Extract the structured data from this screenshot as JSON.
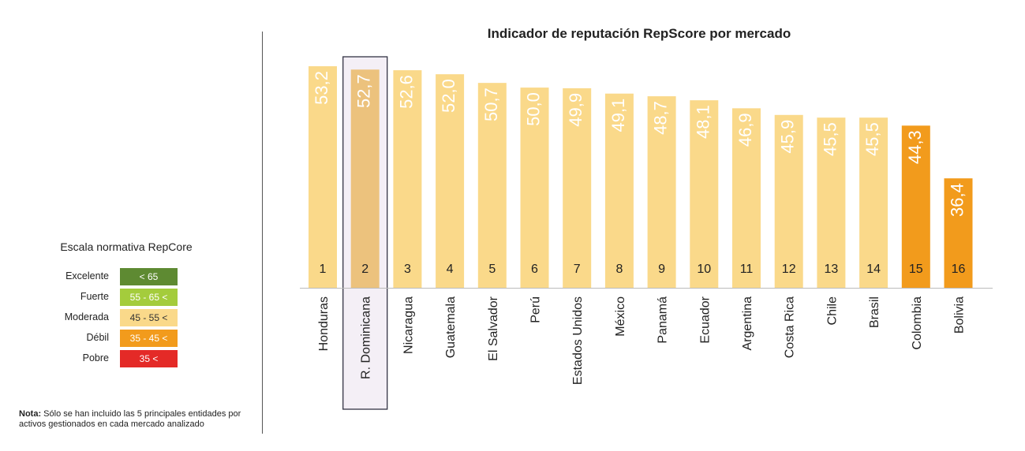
{
  "chart_data": {
    "type": "bar",
    "title": "Indicador de reputación RepScore por mercado",
    "categories": [
      "Honduras",
      "R. Dominicana",
      "Nicaragua",
      "Guatemala",
      "El Salvador",
      "Perú",
      "Estados Unidos",
      "México",
      "Panamá",
      "Ecuador",
      "Argentina",
      "Costa Rica",
      "Chile",
      "Brasil",
      "Colombia",
      "Bolivia"
    ],
    "values": [
      53.2,
      52.7,
      52.6,
      52.0,
      50.7,
      50.0,
      49.9,
      49.1,
      48.7,
      48.1,
      46.9,
      45.9,
      45.5,
      45.5,
      44.3,
      36.4
    ],
    "value_labels": [
      "53,2",
      "52,7",
      "52,6",
      "52,0",
      "50,7",
      "50,0",
      "49,9",
      "49,1",
      "48,7",
      "48,1",
      "46,9",
      "45,9",
      "45,5",
      "45,5",
      "44,3",
      "36,4"
    ],
    "ranks": [
      "1",
      "2",
      "3",
      "4",
      "5",
      "6",
      "7",
      "8",
      "9",
      "10",
      "11",
      "12",
      "13",
      "14",
      "15",
      "16"
    ],
    "bar_colors": [
      "#fad98a",
      "#ecc27d",
      "#fad98a",
      "#fad98a",
      "#fad98a",
      "#fad98a",
      "#fad98a",
      "#fad98a",
      "#fad98a",
      "#fad98a",
      "#fad98a",
      "#fad98a",
      "#fad98a",
      "#fad98a",
      "#f29b1c",
      "#f29b1c"
    ],
    "highlighted": "R. Dominicana",
    "ylim": [
      20,
      54
    ],
    "xlabel": "",
    "ylabel": "",
    "grid": false
  },
  "legend": {
    "title": "Escala normativa RepCore",
    "items": [
      {
        "label": "Excelente",
        "range": "< 65",
        "color": "#5e8a32"
      },
      {
        "label": "Fuerte",
        "range": "55 - 65 <",
        "color": "#a4cc3c"
      },
      {
        "label": "Moderada",
        "range": "45 - 55 <",
        "color": "#fad98a"
      },
      {
        "label": "Débil",
        "range": "35 - 45 <",
        "color": "#f29b1c"
      },
      {
        "label": "Pobre",
        "range": "35 <",
        "color": "#e42a27"
      }
    ]
  },
  "note": {
    "bold": "Nota:",
    "text": " Sólo se han incluido las 5 principales entidades por activos gestionados en cada mercado analizado"
  }
}
